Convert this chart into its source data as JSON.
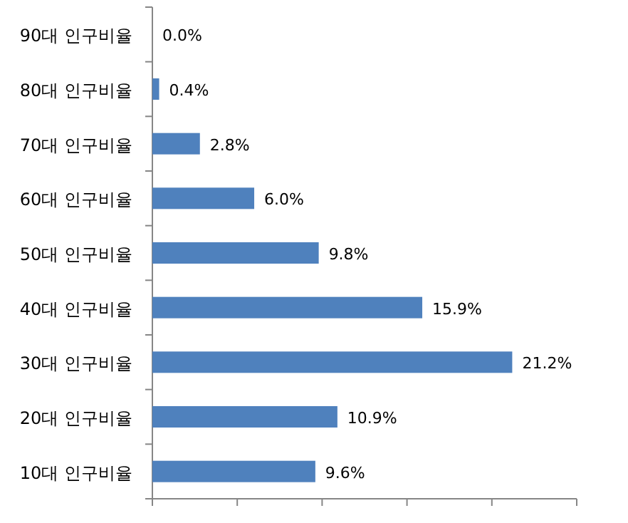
{
  "chart_data": {
    "type": "bar",
    "orientation": "horizontal",
    "categories": [
      "90대 인구비율",
      "80대 인구비율",
      "70대 인구비율",
      "60대 인구비율",
      "50대 인구비율",
      "40대 인구비율",
      "30대 인구비율",
      "20대 인구비율",
      "10대 인구비율"
    ],
    "values": [
      0.0,
      0.4,
      2.8,
      6.0,
      9.8,
      15.9,
      21.2,
      10.9,
      9.6
    ],
    "value_labels": [
      "0.0%",
      "0.4%",
      "2.8%",
      "6.0%",
      "9.8%",
      "15.9%",
      "21.2%",
      "10.9%",
      "9.6%"
    ],
    "color": "#4f81bd",
    "xlim": [
      0,
      25
    ],
    "xticks": [
      {
        "value": 0,
        "label": null
      },
      {
        "value": 5,
        "label": null
      },
      {
        "value": 10,
        "label": null
      },
      {
        "value": 15,
        "label": null
      },
      {
        "value": 20,
        "label": null
      },
      {
        "value": 25,
        "label": null
      }
    ],
    "tick_labels": "y",
    "grid": false
  }
}
